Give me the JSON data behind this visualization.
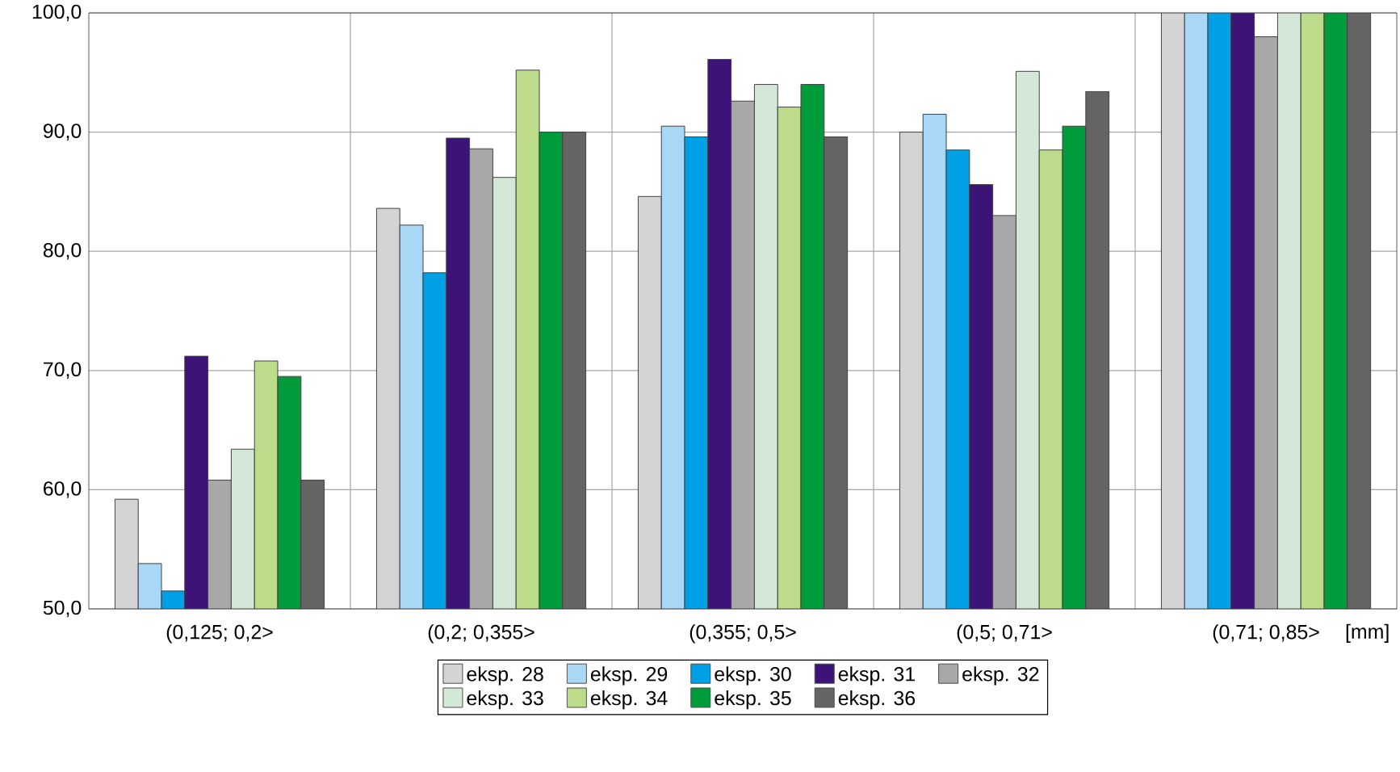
{
  "chart_data": {
    "type": "bar",
    "xlabel": "[mm]",
    "categories": [
      "(0,125; 0,2>",
      "(0,2; 0,355>",
      "(0,355; 0,5>",
      "(0,5; 0,71>",
      "(0,71; 0,85>"
    ],
    "series": [
      {
        "name": "eksp. 28",
        "color": "#d4d4d4",
        "values": [
          59.2,
          83.6,
          84.6,
          90.0,
          100
        ]
      },
      {
        "name": "eksp. 29",
        "color": "#a8d8f5",
        "values": [
          53.8,
          82.2,
          90.5,
          91.5,
          100
        ]
      },
      {
        "name": "eksp. 30",
        "color": "#00a0e6",
        "values": [
          51.5,
          78.2,
          89.6,
          88.5,
          100
        ]
      },
      {
        "name": "eksp. 31",
        "color": "#3c1478",
        "values": [
          71.2,
          89.5,
          96.1,
          85.6,
          100
        ]
      },
      {
        "name": "eksp. 32",
        "color": "#a8a8a8",
        "values": [
          60.8,
          88.6,
          92.6,
          83.0,
          98.0
        ]
      },
      {
        "name": "eksp. 33",
        "color": "#d4e8d8",
        "values": [
          63.4,
          86.2,
          94.0,
          95.1,
          100
        ]
      },
      {
        "name": "eksp. 34",
        "color": "#bcdc8c",
        "values": [
          70.8,
          95.2,
          92.1,
          88.5,
          100
        ]
      },
      {
        "name": "eksp. 35",
        "color": "#009c3c",
        "values": [
          69.5,
          90.0,
          94.0,
          90.5,
          100
        ]
      },
      {
        "name": "eksp. 36",
        "color": "#646464",
        "values": [
          60.8,
          90.0,
          89.6,
          93.4,
          100
        ]
      }
    ],
    "ylim": [
      50,
      100
    ],
    "yticks": [
      {
        "value": 50,
        "label": "50,0"
      },
      {
        "value": 60,
        "label": "60,0"
      },
      {
        "value": 70,
        "label": "70,0"
      },
      {
        "value": 80,
        "label": "80,0"
      },
      {
        "value": 90,
        "label": "90,0"
      },
      {
        "value": 100,
        "label": "100,0"
      }
    ],
    "grid": true,
    "legend": "bottom"
  }
}
